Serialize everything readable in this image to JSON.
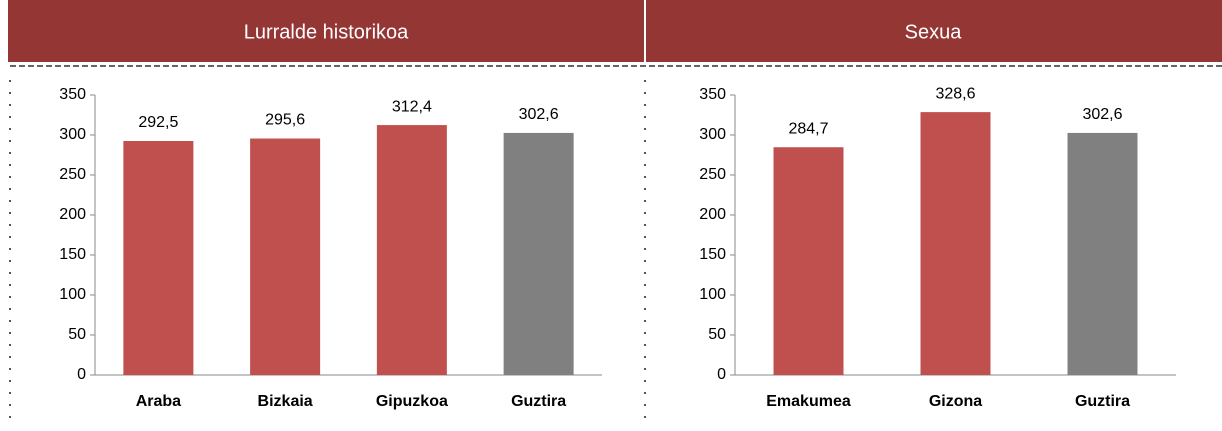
{
  "chart_data": [
    {
      "type": "bar",
      "title": "Lurralde historikoa",
      "categories": [
        "Araba",
        "Bizkaia",
        "Gipuzkoa",
        "Guztira"
      ],
      "values": [
        292.5,
        295.6,
        312.4,
        302.6
      ],
      "value_labels": [
        "292,5",
        "295,6",
        "312,4",
        "302,6"
      ],
      "colors": [
        "#c0504d",
        "#c0504d",
        "#c0504d",
        "#808080"
      ],
      "ylim": [
        0,
        350
      ],
      "yticks": [
        0,
        50,
        100,
        150,
        200,
        250,
        300,
        350
      ]
    },
    {
      "type": "bar",
      "title": "Sexua",
      "categories": [
        "Emakumea",
        "Gizona",
        "Guztira"
      ],
      "values": [
        284.7,
        328.6,
        302.6
      ],
      "value_labels": [
        "284,7",
        "328,6",
        "302,6"
      ],
      "colors": [
        "#c0504d",
        "#c0504d",
        "#808080"
      ],
      "ylim": [
        0,
        350
      ],
      "yticks": [
        0,
        50,
        100,
        150,
        200,
        250,
        300,
        350
      ]
    }
  ]
}
